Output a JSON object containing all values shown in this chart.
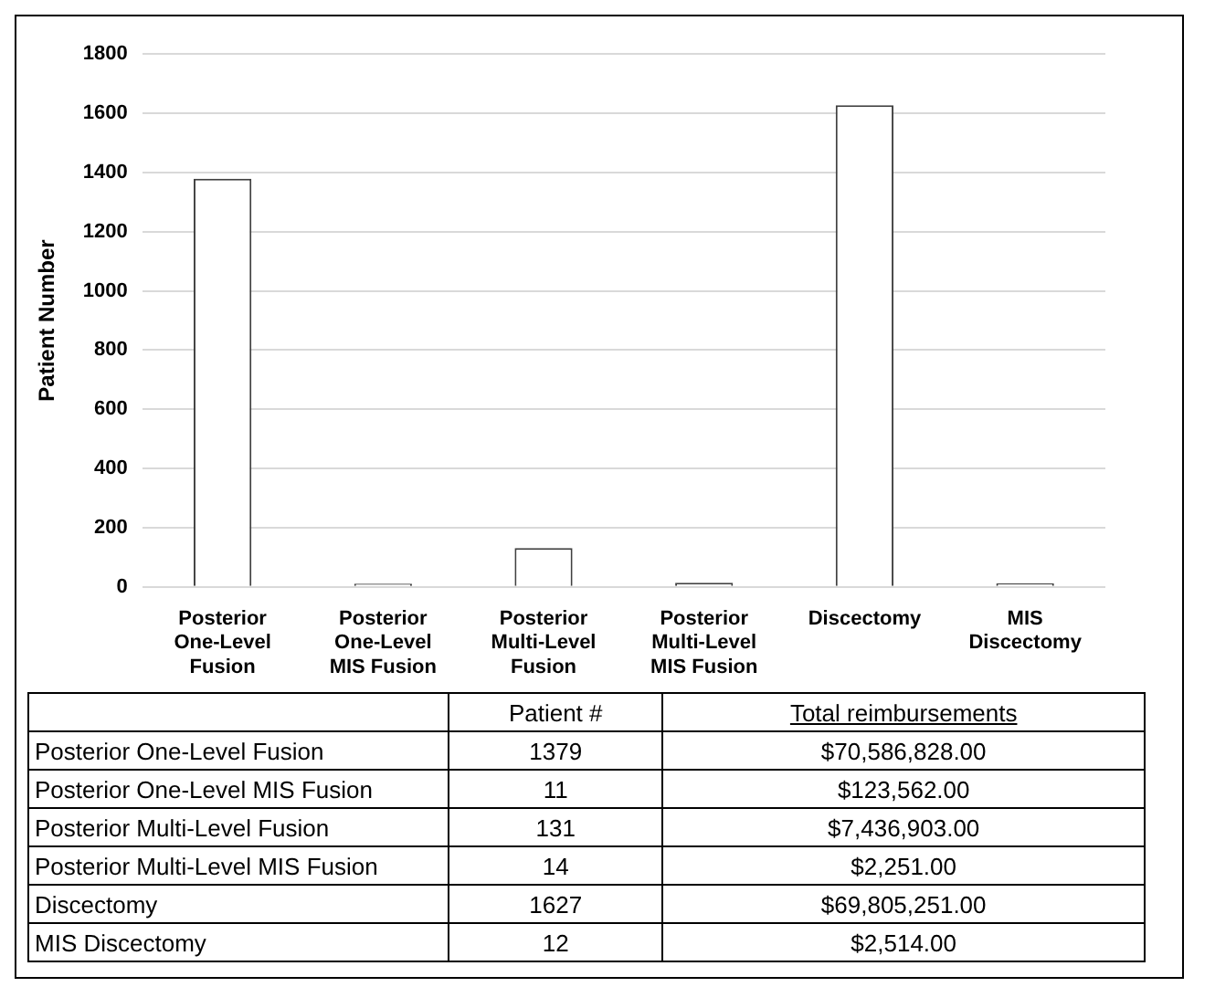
{
  "chart_data": [
    {
      "type": "bar",
      "ylabel": "Patient Number",
      "categories": [
        "Posterior One-Level Fusion",
        "Posterior One-Level MIS Fusion",
        "Posterior Multi-Level Fusion",
        "Posterior Multi-Level MIS Fusion",
        "Discectomy",
        "MIS Discectomy"
      ],
      "values": [
        1379,
        11,
        131,
        14,
        1627,
        12
      ],
      "color": "#ffffff",
      "ylim": [
        0,
        1800
      ],
      "yticks": [
        0,
        200,
        400,
        600,
        800,
        1000,
        1200,
        1400,
        1600,
        1800
      ],
      "grid": "y"
    },
    {
      "type": "other",
      "categories": [
        "Posterior One-Level Fusion",
        "Posterior One-Level MIS Fusion",
        "Posterior Multi-Level Fusion",
        "Posterior Multi-Level MIS Fusion",
        "Discectomy",
        "MIS Discectomy"
      ],
      "annotations": [
        "Patient #",
        "Total reimbursements",
        "1379",
        "$70,586,828.00",
        "11",
        "$123,562.00",
        "131",
        "$7,436,903.00",
        "14",
        "$2,251.00",
        "1627",
        "$69,805,251.00",
        "12",
        "$2,514.00"
      ]
    }
  ]
}
